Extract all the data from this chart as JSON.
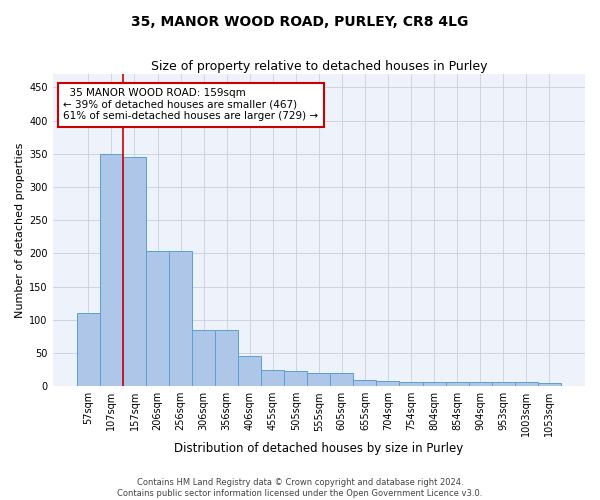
{
  "title_line1": "35, MANOR WOOD ROAD, PURLEY, CR8 4LG",
  "title_line2": "Size of property relative to detached houses in Purley",
  "xlabel": "Distribution of detached houses by size in Purley",
  "ylabel": "Number of detached properties",
  "bar_color": "#aec6e8",
  "bar_edge_color": "#5a9fd4",
  "background_color": "#eef2fa",
  "grid_color": "#c8cfe0",
  "annotation_box_color": "#cc0000",
  "vline_color": "#cc0000",
  "categories": [
    "57sqm",
    "107sqm",
    "157sqm",
    "206sqm",
    "256sqm",
    "306sqm",
    "356sqm",
    "406sqm",
    "455sqm",
    "505sqm",
    "555sqm",
    "605sqm",
    "655sqm",
    "704sqm",
    "754sqm",
    "804sqm",
    "854sqm",
    "904sqm",
    "953sqm",
    "1003sqm",
    "1053sqm"
  ],
  "values": [
    110,
    350,
    345,
    203,
    203,
    84,
    84,
    46,
    25,
    23,
    20,
    20,
    10,
    8,
    7,
    6,
    6,
    6,
    6,
    6,
    5
  ],
  "vline_x_index": 1.5,
  "annotation_text": "  35 MANOR WOOD ROAD: 159sqm\n← 39% of detached houses are smaller (467)\n61% of semi-detached houses are larger (729) →",
  "footer_line1": "Contains HM Land Registry data © Crown copyright and database right 2024.",
  "footer_line2": "Contains public sector information licensed under the Open Government Licence v3.0.",
  "ylim": [
    0,
    470
  ],
  "yticks": [
    0,
    50,
    100,
    150,
    200,
    250,
    300,
    350,
    400,
    450
  ],
  "title1_fontsize": 10,
  "title2_fontsize": 9,
  "ylabel_fontsize": 8,
  "xlabel_fontsize": 8.5,
  "tick_fontsize": 7,
  "footer_fontsize": 6,
  "ann_fontsize": 7.5
}
